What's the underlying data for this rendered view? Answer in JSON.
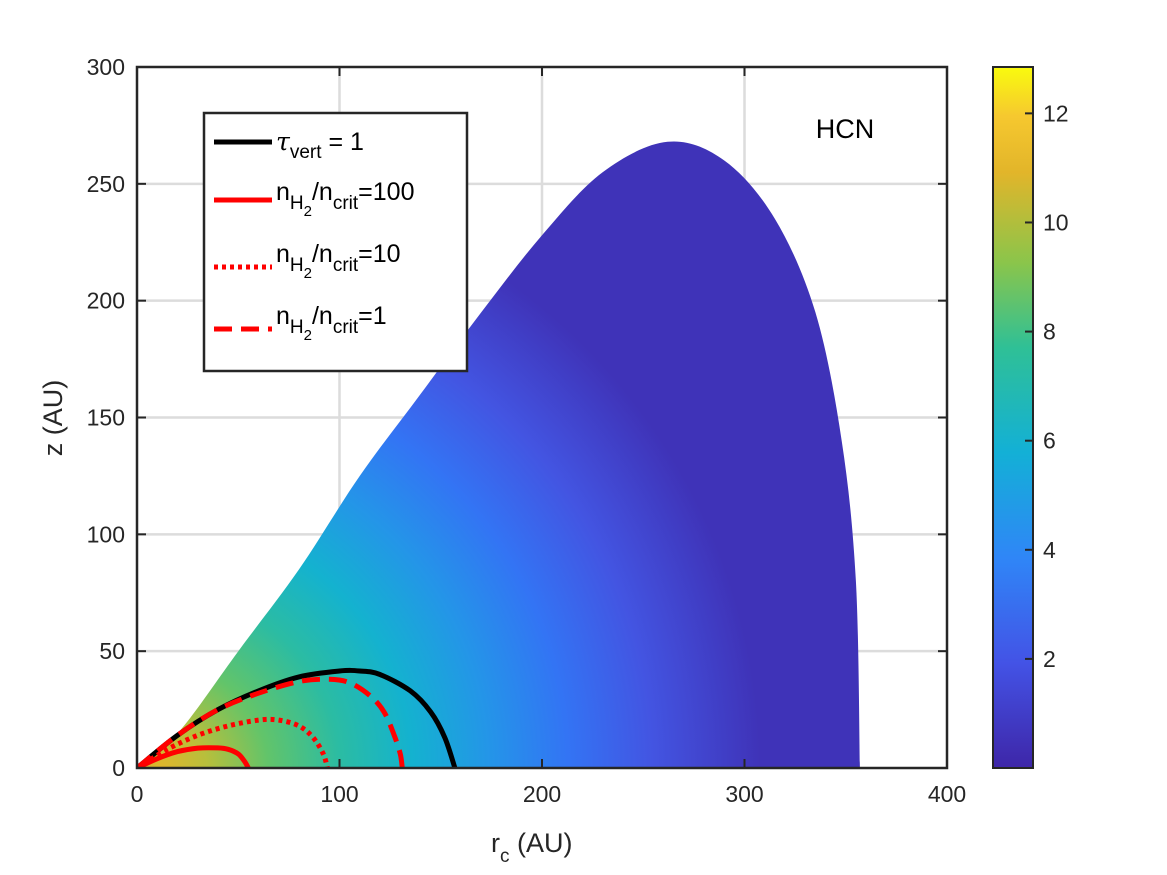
{
  "chart_data": {
    "type": "heatmap",
    "title": "",
    "annotation": "HCN",
    "xlabel_main": "r",
    "xlabel_sub": "c",
    "xlabel_tail": " (AU)",
    "ylabel": "z (AU)",
    "xlim": [
      0,
      400
    ],
    "ylim": [
      0,
      300
    ],
    "xticks": [
      0,
      100,
      200,
      300,
      400
    ],
    "yticks": [
      0,
      50,
      100,
      150,
      200,
      250,
      300
    ],
    "grid": true,
    "colorbar": {
      "range": [
        0,
        12.85
      ],
      "ticks": [
        2,
        4,
        6,
        8,
        10,
        12
      ],
      "colormap": "parula"
    },
    "region_boundary": [
      [
        0,
        0
      ],
      [
        10,
        6
      ],
      [
        25,
        20
      ],
      [
        50,
        50
      ],
      [
        80,
        85
      ],
      [
        110,
        125
      ],
      [
        140,
        160
      ],
      [
        170,
        195
      ],
      [
        200,
        228
      ],
      [
        230,
        255
      ],
      [
        262,
        268
      ],
      [
        290,
        260
      ],
      [
        315,
        235
      ],
      [
        335,
        195
      ],
      [
        348,
        140
      ],
      [
        355,
        80
      ],
      [
        357,
        0
      ]
    ],
    "legend": {
      "location": "top-left",
      "entries": [
        {
          "main": "τ",
          "sub": "vert",
          "tail": " = 1",
          "color": "#000000",
          "style": "solid"
        },
        {
          "main": "n",
          "sub": "H",
          "subsub": "2",
          "mid": "/n",
          "sub2": "crit",
          "tail": "=100",
          "color": "#ff0000",
          "style": "solid"
        },
        {
          "main": "n",
          "sub": "H",
          "subsub": "2",
          "mid": "/n",
          "sub2": "crit",
          "tail": "=10",
          "color": "#ff0000",
          "style": "dotted"
        },
        {
          "main": "n",
          "sub": "H",
          "subsub": "2",
          "mid": "/n",
          "sub2": "crit",
          "tail": "=1",
          "color": "#ff0000",
          "style": "dashed"
        }
      ]
    },
    "series": [
      {
        "style": "solid",
        "color": "#000000",
        "x": [
          0,
          20,
          40,
          60,
          80,
          100,
          110,
          120,
          135,
          145,
          152,
          157
        ],
        "y": [
          0,
          14,
          25,
          33,
          39,
          41.5,
          41.5,
          40,
          33,
          24,
          13,
          0
        ]
      },
      {
        "style": "solid",
        "color": "#ff0000",
        "x": [
          0,
          10,
          20,
          30,
          40,
          45,
          50,
          53,
          55
        ],
        "y": [
          0,
          4,
          7,
          8.5,
          8.6,
          8,
          6,
          3,
          0
        ]
      },
      {
        "style": "dotted",
        "color": "#ff0000",
        "x": [
          0,
          15,
          30,
          45,
          60,
          70,
          80,
          87,
          92,
          94
        ],
        "y": [
          0,
          8,
          14,
          18,
          20.5,
          20.5,
          18,
          13,
          6,
          0
        ]
      },
      {
        "style": "dashed",
        "color": "#ff0000",
        "x": [
          0,
          20,
          40,
          60,
          80,
          95,
          105,
          115,
          122,
          127,
          130,
          131
        ],
        "y": [
          0,
          14,
          25,
          32,
          37,
          38,
          36.5,
          31,
          24,
          14,
          6,
          0
        ]
      }
    ]
  }
}
